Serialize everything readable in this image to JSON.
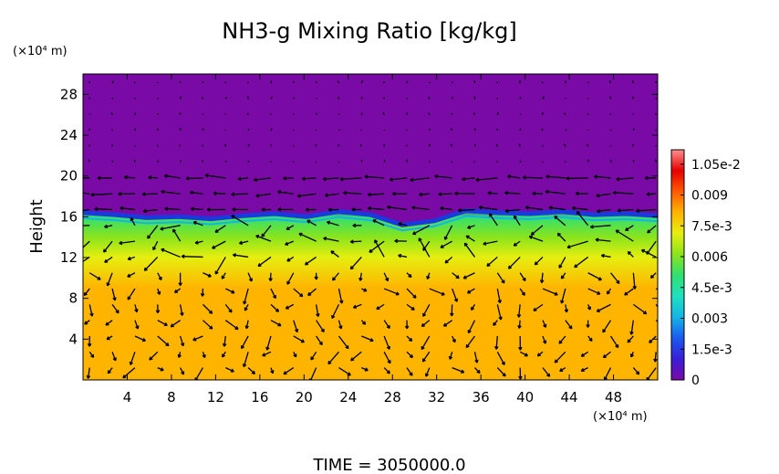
{
  "chart_data": {
    "type": "heatmap",
    "title": "NH3-g Mixing Ratio [kg/kg]",
    "ylabel": "Height",
    "y_unit": "(×10⁴ m)",
    "x_unit": "(×10⁴ m)",
    "xlim": [
      0,
      52
    ],
    "ylim": [
      0,
      30
    ],
    "x_ticks": [
      4,
      8,
      12,
      16,
      20,
      24,
      28,
      32,
      36,
      40,
      44,
      48
    ],
    "y_ticks": [
      4,
      8,
      12,
      16,
      20,
      24,
      28
    ],
    "colorbar": {
      "min": 0,
      "max": 0.0112,
      "tick_values": [
        0,
        0.0015,
        0.003,
        0.0045,
        0.006,
        0.0075,
        0.009,
        0.0105
      ],
      "tick_labels": [
        "0",
        "1.5e-3",
        "0.003",
        "4.5e-3",
        "0.006",
        "7.5e-3",
        "0.009",
        "1.05e-2"
      ],
      "colors": [
        "#7a0aa6",
        "#3a1ed8",
        "#1a5af0",
        "#14b4e6",
        "#20e0c0",
        "#30e070",
        "#8ae41c",
        "#e6ee10",
        "#ffb400",
        "#ff5a00",
        "#e60000",
        "#ff9090"
      ]
    },
    "field_profile": {
      "description_heights": [
        0,
        9,
        12,
        14,
        16,
        17,
        30
      ],
      "values": [
        0.0085,
        0.0082,
        0.0075,
        0.0058,
        0.0048,
        0,
        0
      ]
    },
    "interface_height": [
      16.4,
      16.2,
      15.9,
      16.0,
      15.8,
      16.1,
      16.3,
      16.0,
      16.5,
      16.2,
      15.2,
      15.6,
      16.6,
      16.4,
      16.3,
      16.5,
      16.2,
      16.3,
      16.1
    ],
    "wind_field": "vector arrows overlay",
    "time_label": "TIME = 3050000.0"
  }
}
